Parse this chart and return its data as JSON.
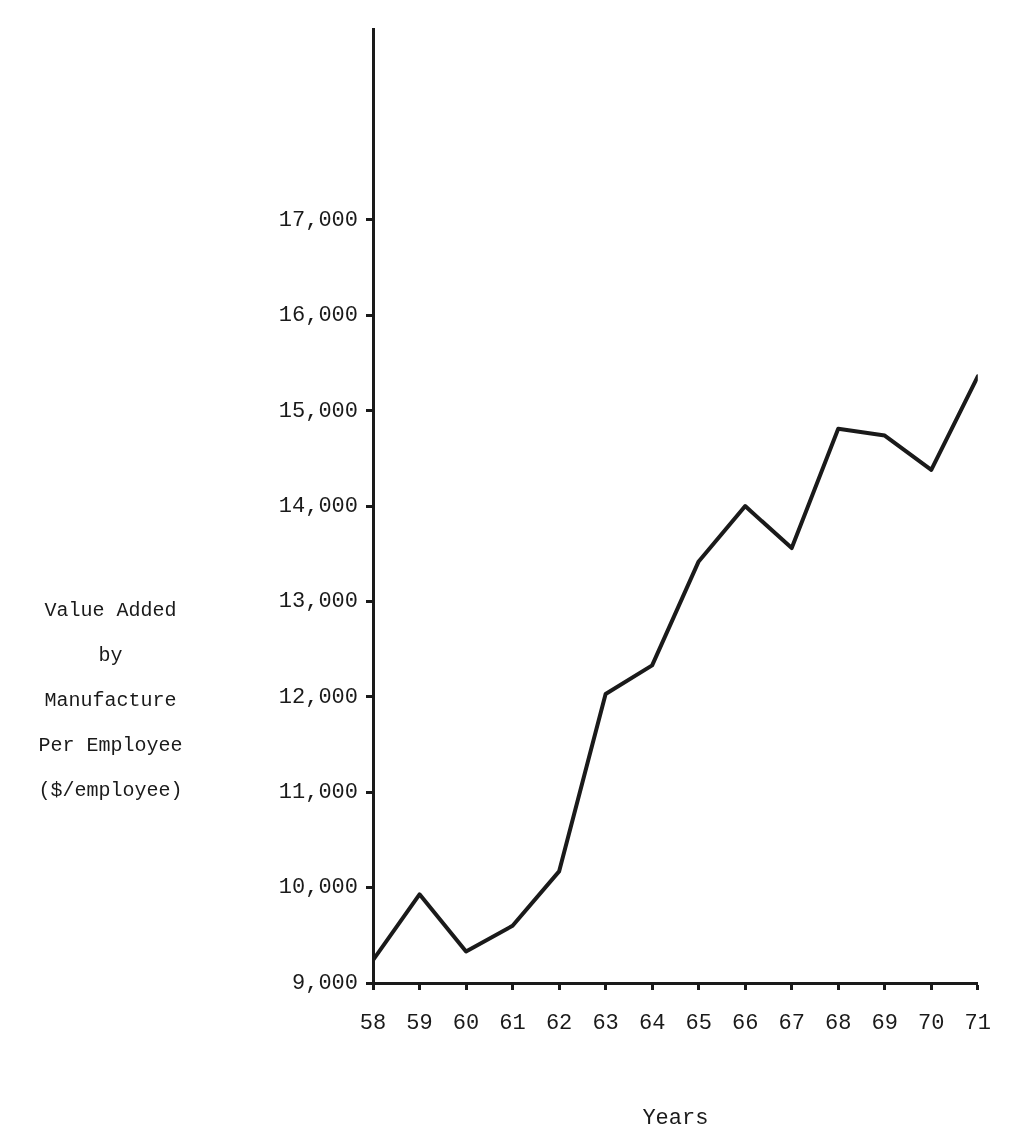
{
  "chart_data": {
    "type": "line",
    "xlabel": "Years",
    "ylabel": "Value Added\nby\nManufacture\nPer Employee\n($/employee)",
    "x": [
      58,
      59,
      60,
      61,
      62,
      63,
      64,
      65,
      66,
      67,
      68,
      69,
      70,
      71
    ],
    "series": [
      {
        "color": "#1a1a1a",
        "values": [
          9240,
          9930,
          9330,
          9600,
          10170,
          12030,
          12330,
          13420,
          14000,
          13560,
          14810,
          14740,
          14380,
          15360
        ]
      }
    ],
    "xlim": [
      58,
      71
    ],
    "xticks": [
      58,
      59,
      60,
      61,
      62,
      63,
      64,
      65,
      66,
      67,
      68,
      69,
      70,
      71
    ],
    "ylim": [
      9000,
      19000
    ],
    "yticks": [
      {
        "value": 9000,
        "label": "9,000"
      },
      {
        "value": 10000,
        "label": "10,000"
      },
      {
        "value": 11000,
        "label": "11,000"
      },
      {
        "value": 12000,
        "label": "12,000"
      },
      {
        "value": 13000,
        "label": "13,000"
      },
      {
        "value": 14000,
        "label": "14,000"
      },
      {
        "value": 15000,
        "label": "15,000"
      },
      {
        "value": 16000,
        "label": "16,000"
      },
      {
        "value": 17000,
        "label": "17,000"
      }
    ],
    "grid": false,
    "legend": false,
    "marker": "none",
    "line_style": "solid"
  }
}
